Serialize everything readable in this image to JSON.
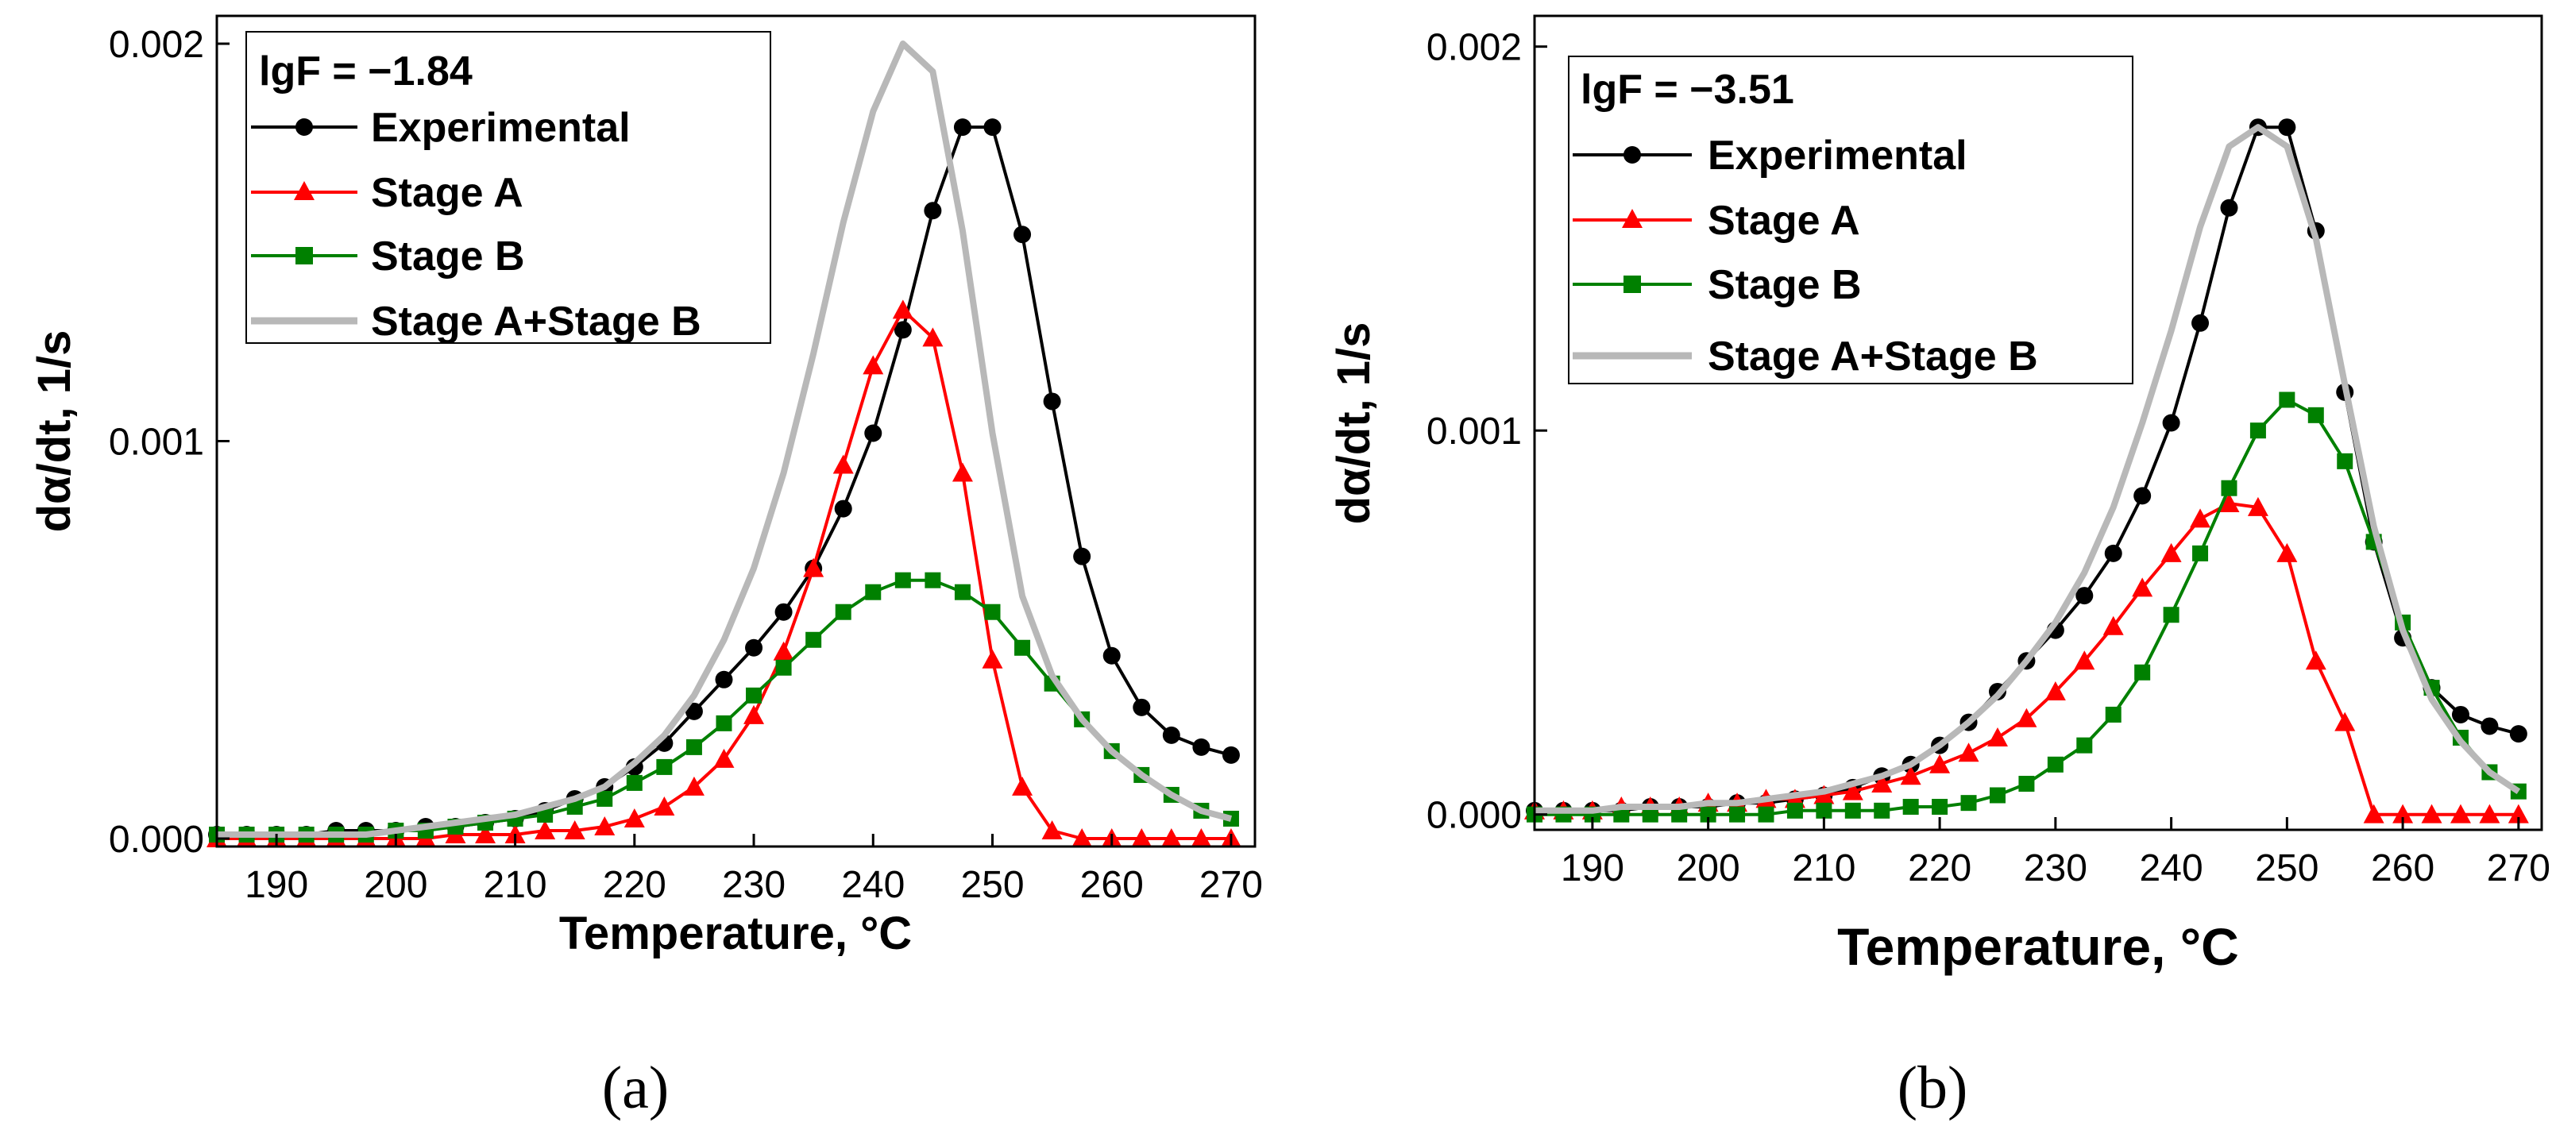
{
  "figure": {
    "caption_a": "(a)",
    "caption_b": "(b)"
  },
  "colors": {
    "experimental": "#000000",
    "stage_a": "#ff0000",
    "stage_b": "#008000",
    "sum": "#b8b8b8"
  },
  "chart_data": [
    {
      "type": "line",
      "panel": "a",
      "annotation": "lgF = −1.84",
      "xlabel": "Temperature, °C",
      "ylabel": "dα/dt, 1/s",
      "xlim": [
        185,
        272
      ],
      "ylim": [
        -2e-05,
        0.00207
      ],
      "xticks": [
        190,
        200,
        210,
        220,
        230,
        240,
        250,
        260,
        270
      ],
      "yticks": [
        0.0,
        0.001,
        0.002
      ],
      "ytick_labels": [
        "0.000",
        "0.001",
        "0.002"
      ],
      "legend": [
        "Experimental",
        "Stage A",
        "Stage B",
        "Stage A+Stage B"
      ],
      "x": [
        185,
        187.5,
        190,
        192.5,
        195,
        197.5,
        200,
        202.5,
        205,
        207.5,
        210,
        212.5,
        215,
        217.5,
        220,
        222.5,
        225,
        227.5,
        230,
        232.5,
        235,
        237.5,
        240,
        242.5,
        245,
        247.5,
        250,
        252.5,
        255,
        257.5,
        260,
        262.5,
        265,
        267.5,
        270
      ],
      "series": [
        {
          "name": "Experimental",
          "marker": "circle",
          "values": [
            1e-05,
            1e-05,
            1e-05,
            1e-05,
            2e-05,
            2e-05,
            2e-05,
            3e-05,
            3e-05,
            4e-05,
            5e-05,
            7e-05,
            0.0001,
            0.00013,
            0.00018,
            0.00024,
            0.00032,
            0.0004,
            0.00048,
            0.00057,
            0.00068,
            0.00083,
            0.00102,
            0.00128,
            0.00158,
            0.00179,
            0.00179,
            0.00152,
            0.0011,
            0.00071,
            0.00046,
            0.00033,
            0.00026,
            0.00023,
            0.00021
          ]
        },
        {
          "name": "Stage A",
          "marker": "triangle",
          "values": [
            0,
            0,
            0,
            0,
            0,
            0,
            0,
            0,
            1e-05,
            1e-05,
            1e-05,
            2e-05,
            2e-05,
            3e-05,
            5e-05,
            8e-05,
            0.00013,
            0.0002,
            0.00031,
            0.00047,
            0.00068,
            0.00094,
            0.00119,
            0.00133,
            0.00126,
            0.00092,
            0.00045,
            0.00013,
            2e-05,
            0,
            0,
            0,
            0,
            0,
            0
          ]
        },
        {
          "name": "Stage B",
          "marker": "square",
          "values": [
            1e-05,
            1e-05,
            1e-05,
            1e-05,
            1e-05,
            1e-05,
            2e-05,
            2e-05,
            3e-05,
            4e-05,
            5e-05,
            6e-05,
            8e-05,
            0.0001,
            0.00014,
            0.00018,
            0.00023,
            0.00029,
            0.00036,
            0.00043,
            0.0005,
            0.00057,
            0.00062,
            0.00065,
            0.00065,
            0.00062,
            0.00057,
            0.00048,
            0.00039,
            0.0003,
            0.00022,
            0.00016,
            0.00011,
            7e-05,
            5e-05
          ]
        },
        {
          "name": "Stage A+Stage B",
          "marker": "none",
          "values": [
            1e-05,
            1e-05,
            1e-05,
            1e-05,
            1e-05,
            1e-05,
            2e-05,
            3e-05,
            4e-05,
            5e-05,
            6e-05,
            8e-05,
            0.0001,
            0.00013,
            0.00019,
            0.00026,
            0.00036,
            0.0005,
            0.00068,
            0.00092,
            0.00122,
            0.00155,
            0.00183,
            0.002,
            0.00193,
            0.00153,
            0.00102,
            0.00061,
            0.00041,
            0.0003,
            0.00022,
            0.00016,
            0.00011,
            7e-05,
            5e-05
          ]
        }
      ]
    },
    {
      "type": "line",
      "panel": "b",
      "annotation": "lgF = −3.51",
      "xlabel": "Temperature, °C",
      "ylabel": "dα/dt, 1/s",
      "xlim": [
        185,
        272
      ],
      "ylim": [
        -4e-05,
        0.00208
      ],
      "xticks": [
        190,
        200,
        210,
        220,
        230,
        240,
        250,
        260,
        270
      ],
      "yticks": [
        0.0,
        0.001,
        0.002
      ],
      "ytick_labels": [
        "0.000",
        "0.001",
        "0.002"
      ],
      "legend": [
        "Experimental",
        "Stage A",
        "Stage B",
        "Stage A+Stage B"
      ],
      "x": [
        185,
        187.5,
        190,
        192.5,
        195,
        197.5,
        200,
        202.5,
        205,
        207.5,
        210,
        212.5,
        215,
        217.5,
        220,
        222.5,
        225,
        227.5,
        230,
        232.5,
        235,
        237.5,
        240,
        242.5,
        245,
        247.5,
        250,
        252.5,
        255,
        257.5,
        260,
        262.5,
        265,
        267.5,
        270
      ],
      "series": [
        {
          "name": "Experimental",
          "marker": "circle",
          "values": [
            1e-05,
            1e-05,
            1e-05,
            1e-05,
            2e-05,
            2e-05,
            2e-05,
            3e-05,
            3e-05,
            4e-05,
            5e-05,
            7e-05,
            0.0001,
            0.00013,
            0.00018,
            0.00024,
            0.00032,
            0.0004,
            0.00048,
            0.00057,
            0.00068,
            0.00083,
            0.00102,
            0.00128,
            0.00158,
            0.00179,
            0.00179,
            0.00152,
            0.0011,
            0.00071,
            0.00046,
            0.00033,
            0.00026,
            0.00023,
            0.00021
          ]
        },
        {
          "name": "Stage A",
          "marker": "triangle",
          "values": [
            1e-05,
            1e-05,
            1e-05,
            2e-05,
            2e-05,
            2e-05,
            3e-05,
            3e-05,
            4e-05,
            4e-05,
            5e-05,
            6e-05,
            8e-05,
            0.0001,
            0.00013,
            0.00016,
            0.0002,
            0.00025,
            0.00032,
            0.0004,
            0.00049,
            0.00059,
            0.00068,
            0.00077,
            0.00081,
            0.0008,
            0.00068,
            0.0004,
            0.00024,
            0.0,
            0.0,
            0.0,
            0.0,
            0.0,
            0.0
          ]
        },
        {
          "name": "Stage B",
          "marker": "square",
          "values": [
            0,
            0,
            0,
            0,
            0,
            0,
            0,
            0,
            0,
            1e-05,
            1e-05,
            1e-05,
            1e-05,
            2e-05,
            2e-05,
            3e-05,
            5e-05,
            8e-05,
            0.00013,
            0.00018,
            0.00026,
            0.00037,
            0.00052,
            0.00068,
            0.00085,
            0.001,
            0.00108,
            0.00104,
            0.00092,
            0.00071,
            0.0005,
            0.00033,
            0.0002,
            0.00011,
            6e-05
          ]
        },
        {
          "name": "Stage A+Stage B",
          "marker": "none",
          "values": [
            1e-05,
            1e-05,
            1e-05,
            2e-05,
            2e-05,
            2e-05,
            3e-05,
            3e-05,
            4e-05,
            5e-05,
            6e-05,
            8e-05,
            0.0001,
            0.00013,
            0.00018,
            0.00024,
            0.00031,
            0.0004,
            0.0005,
            0.00063,
            0.0008,
            0.00102,
            0.00126,
            0.00153,
            0.00174,
            0.00179,
            0.00174,
            0.0015,
            0.00112,
            0.00075,
            0.00048,
            0.0003,
            0.00019,
            0.00011,
            6e-05
          ]
        }
      ]
    }
  ]
}
